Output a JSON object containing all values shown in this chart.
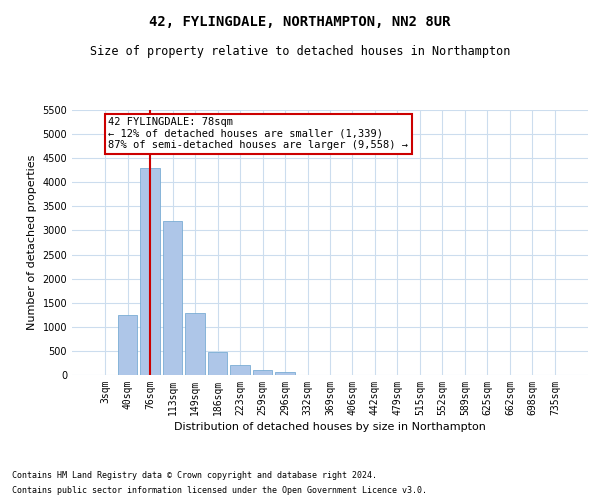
{
  "title": "42, FYLINGDALE, NORTHAMPTON, NN2 8UR",
  "subtitle": "Size of property relative to detached houses in Northampton",
  "xlabel": "Distribution of detached houses by size in Northampton",
  "ylabel": "Number of detached properties",
  "footnote1": "Contains HM Land Registry data © Crown copyright and database right 2024.",
  "footnote2": "Contains public sector information licensed under the Open Government Licence v3.0.",
  "annotation_line1": "42 FYLINGDALE: 78sqm",
  "annotation_line2": "← 12% of detached houses are smaller (1,339)",
  "annotation_line3": "87% of semi-detached houses are larger (9,558) →",
  "bar_color": "#aec6e8",
  "bar_edge_color": "#7aadd4",
  "line_color": "#cc0000",
  "annotation_box_edge": "#cc0000",
  "categories": [
    "3sqm",
    "40sqm",
    "76sqm",
    "113sqm",
    "149sqm",
    "186sqm",
    "223sqm",
    "259sqm",
    "296sqm",
    "332sqm",
    "369sqm",
    "406sqm",
    "442sqm",
    "479sqm",
    "515sqm",
    "552sqm",
    "589sqm",
    "625sqm",
    "662sqm",
    "698sqm",
    "735sqm"
  ],
  "values": [
    0,
    1250,
    4300,
    3200,
    1280,
    470,
    200,
    100,
    70,
    0,
    0,
    0,
    0,
    0,
    0,
    0,
    0,
    0,
    0,
    0,
    0
  ],
  "ylim": [
    0,
    5500
  ],
  "yticks": [
    0,
    500,
    1000,
    1500,
    2000,
    2500,
    3000,
    3500,
    4000,
    4500,
    5000,
    5500
  ],
  "property_bar_index": 2,
  "figsize": [
    6.0,
    5.0
  ],
  "dpi": 100,
  "bg_color": "#ffffff",
  "grid_color": "#ccddee",
  "title_fontsize": 10,
  "subtitle_fontsize": 8.5,
  "axis_label_fontsize": 8,
  "tick_fontsize": 7,
  "annotation_fontsize": 7.5,
  "footnote_fontsize": 6
}
